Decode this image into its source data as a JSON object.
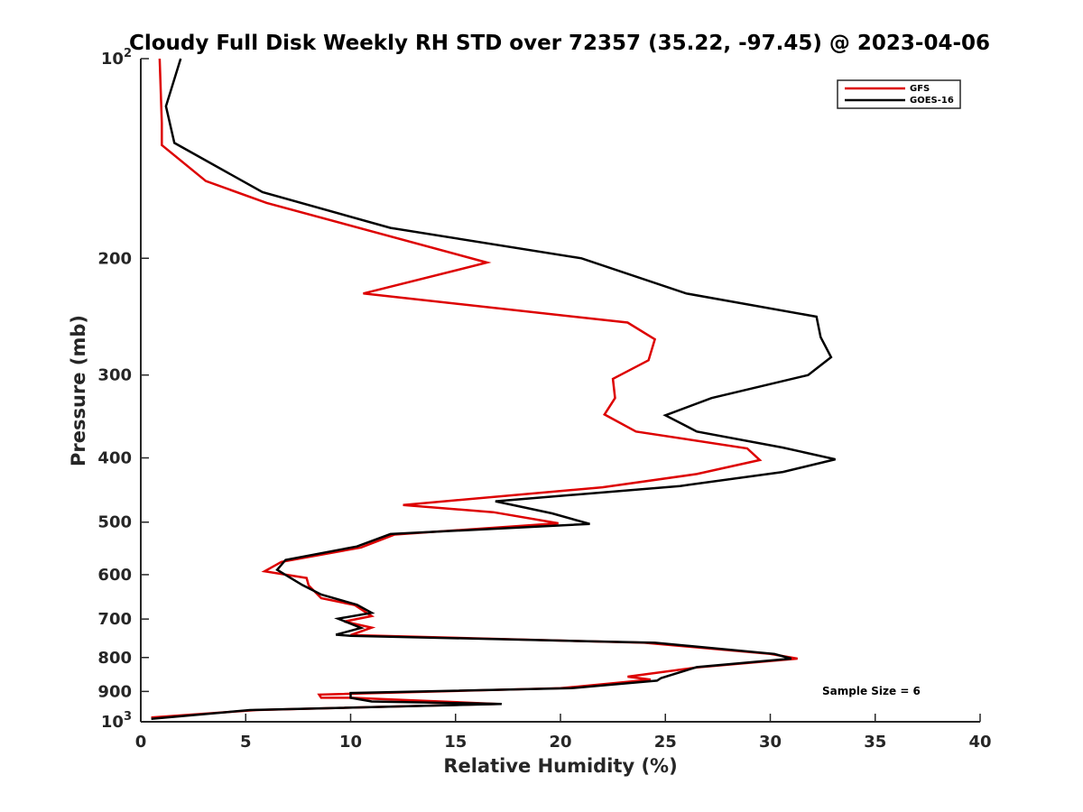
{
  "chart_data": {
    "type": "line",
    "title": "Cloudy Full Disk Weekly RH STD over 72357 (35.22, -97.45) @ 2023-04-06",
    "xlabel": "Relative Humidity (%)",
    "ylabel": "Pressure (mb)",
    "xlim": [
      0,
      40
    ],
    "ylim": [
      100,
      1000
    ],
    "y_scale": "log",
    "y_reversed": true,
    "x_ticks": [
      0,
      5,
      10,
      15,
      20,
      25,
      30,
      35,
      40
    ],
    "x_tick_labels": [
      "0",
      "5",
      "10",
      "15",
      "20",
      "25",
      "30",
      "35",
      "40"
    ],
    "y_ticks": [
      100,
      200,
      300,
      400,
      500,
      600,
      700,
      800,
      900,
      1000
    ],
    "y_tick_labels": [
      "10^2",
      "200",
      "300",
      "400",
      "500",
      "600",
      "700",
      "800",
      "900",
      "10^3"
    ],
    "grid": false,
    "legend_position": "top-right",
    "annotation": "Sample Size = 6",
    "series": [
      {
        "name": "GFS",
        "color": "#dd0000",
        "points": [
          [
            0.9,
            100
          ],
          [
            1.0,
            125
          ],
          [
            1.0,
            135
          ],
          [
            3.1,
            153
          ],
          [
            6.0,
            165
          ],
          [
            16.5,
            203
          ],
          [
            10.6,
            226
          ],
          [
            23.2,
            250
          ],
          [
            24.5,
            265
          ],
          [
            24.2,
            285
          ],
          [
            22.5,
            304
          ],
          [
            22.6,
            325
          ],
          [
            22.1,
            344
          ],
          [
            23.6,
            365
          ],
          [
            28.9,
            387
          ],
          [
            29.5,
            403
          ],
          [
            26.5,
            423
          ],
          [
            22.0,
            443
          ],
          [
            12.5,
            471
          ],
          [
            16.8,
            483
          ],
          [
            19.9,
            502
          ],
          [
            12.1,
            522
          ],
          [
            10.5,
            546
          ],
          [
            6.7,
            574
          ],
          [
            5.9,
            593
          ],
          [
            7.9,
            607
          ],
          [
            8.0,
            623
          ],
          [
            8.6,
            651
          ],
          [
            10.2,
            667
          ],
          [
            11.0,
            693
          ],
          [
            9.7,
            706
          ],
          [
            11.0,
            721
          ],
          [
            10.0,
            740
          ],
          [
            24.0,
            760
          ],
          [
            30.0,
            790
          ],
          [
            31.3,
            803
          ],
          [
            26.5,
            828
          ],
          [
            23.2,
            855
          ],
          [
            24.3,
            864
          ],
          [
            20.0,
            890
          ],
          [
            8.5,
            910
          ],
          [
            8.6,
            920
          ],
          [
            10.0,
            920
          ],
          [
            17.0,
            940
          ],
          [
            5.5,
            960
          ],
          [
            0.5,
            985
          ]
        ]
      },
      {
        "name": "GOES-16",
        "color": "#000000",
        "points": [
          [
            1.9,
            100
          ],
          [
            1.2,
            118
          ],
          [
            1.6,
            134
          ],
          [
            5.8,
            159
          ],
          [
            11.9,
            180
          ],
          [
            21.0,
            200
          ],
          [
            26.0,
            226
          ],
          [
            32.2,
            245
          ],
          [
            32.4,
            263
          ],
          [
            32.9,
            282
          ],
          [
            31.8,
            300
          ],
          [
            27.2,
            325
          ],
          [
            25.0,
            345
          ],
          [
            26.5,
            365
          ],
          [
            30.6,
            386
          ],
          [
            33.1,
            402
          ],
          [
            30.6,
            420
          ],
          [
            25.7,
            441
          ],
          [
            16.9,
            465
          ],
          [
            19.6,
            485
          ],
          [
            21.4,
            503
          ],
          [
            11.9,
            521
          ],
          [
            10.3,
            544
          ],
          [
            6.9,
            570
          ],
          [
            6.5,
            590
          ],
          [
            7.7,
            622
          ],
          [
            8.6,
            643
          ],
          [
            10.3,
            666
          ],
          [
            11.0,
            685
          ],
          [
            9.4,
            699
          ],
          [
            10.5,
            722
          ],
          [
            9.3,
            739
          ],
          [
            10.0,
            742
          ],
          [
            24.5,
            760
          ],
          [
            30.2,
            790
          ],
          [
            31.0,
            803
          ],
          [
            26.5,
            827
          ],
          [
            24.8,
            859
          ],
          [
            24.6,
            867
          ],
          [
            20.5,
            890
          ],
          [
            10.0,
            905
          ],
          [
            10.0,
            920
          ],
          [
            11.0,
            932
          ],
          [
            17.2,
            940
          ],
          [
            5.2,
            960
          ],
          [
            0.5,
            990
          ]
        ]
      }
    ]
  }
}
